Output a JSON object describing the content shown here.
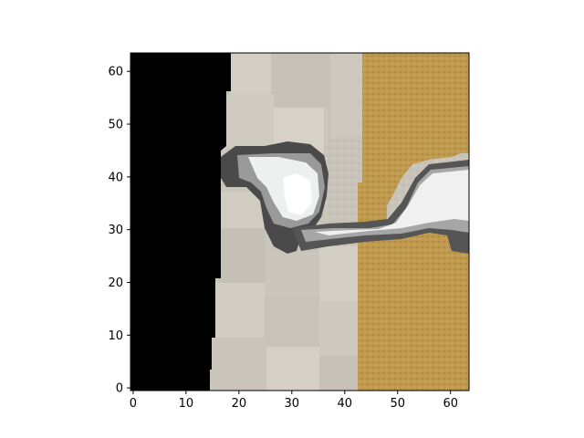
{
  "image": {
    "description_colors": {
      "black_region": "#000000",
      "stone_tile": "#c8c4ba",
      "stone_tile_light": "#d4d0c6",
      "wood": "#c09a4e",
      "wood_dark": "#b08a40",
      "metal_white": "#eef0f0",
      "metal_gray": "#9a9a9a",
      "metal_dark": "#4a4a4a"
    },
    "grid_size": 64
  },
  "axes": {
    "x_ticks": [
      "0",
      "10",
      "20",
      "30",
      "40",
      "50",
      "60"
    ],
    "y_ticks": [
      "0",
      "10",
      "20",
      "30",
      "40",
      "50",
      "60"
    ],
    "x_tick_values": [
      0,
      10,
      20,
      30,
      40,
      50,
      60
    ],
    "y_tick_values": [
      0,
      10,
      20,
      30,
      40,
      50,
      60
    ],
    "xlim": [
      -0.5,
      63.5
    ],
    "ylim": [
      63.5,
      -0.5
    ]
  }
}
